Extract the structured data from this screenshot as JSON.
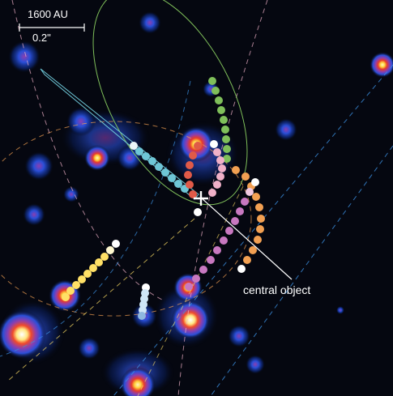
{
  "scale_bar": {
    "distance_label": "1600 AU",
    "angle_label": "0.2\""
  },
  "annotation": {
    "central_label": "central object"
  },
  "colors": {
    "background": "#050710",
    "star_blue": "#2c5ae0",
    "star_hot": "#ffd23c",
    "green_orbit": "#7fbf5a",
    "cyan_orbit": "#6ec6d6",
    "yellow_orbit": "#ffe066",
    "orange_orbit": "#f2a052",
    "pink_orbit": "#f0b0c8",
    "red_orbit": "#e05a48",
    "magenta_orbit": "#c878c0",
    "white_cross": "#ffffff"
  },
  "icons": {
    "center_marker": "plus-icon"
  }
}
